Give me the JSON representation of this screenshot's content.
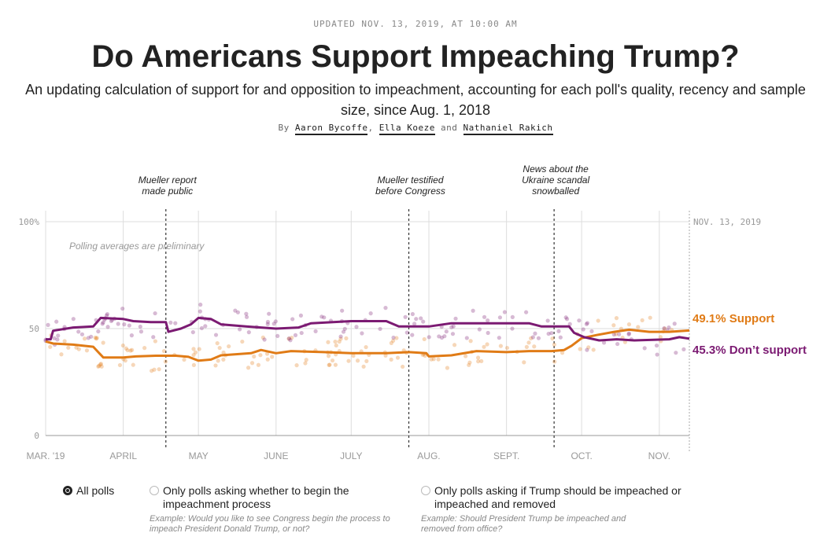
{
  "header": {
    "updated": "UPDATED NOV. 13, 2019, AT 10:00 AM",
    "title": "Do Americans Support Impeaching Trump?",
    "subtitle": "An updating calculation of support for and opposition to impeachment, accounting for each poll's quality, recency and sample size, since Aug. 1, 2018",
    "byline_by": "By",
    "authors": [
      "Aaron Bycoffe",
      "Ella Koeze",
      "Nathaniel Rakich"
    ],
    "byline_sep": ",",
    "byline_and": "and"
  },
  "chart_data": {
    "type": "line",
    "x_start": "2019-03-01",
    "x_end": "2019-11-13",
    "ylim": [
      0,
      100
    ],
    "y_ticks": [
      "0",
      "50",
      "100%"
    ],
    "x_ticks": [
      {
        "date": "2019-03-01",
        "label": "MAR. '19"
      },
      {
        "date": "2019-04-01",
        "label": "APRIL"
      },
      {
        "date": "2019-05-01",
        "label": "MAY"
      },
      {
        "date": "2019-06-01",
        "label": "JUNE"
      },
      {
        "date": "2019-07-01",
        "label": "JULY"
      },
      {
        "date": "2019-08-01",
        "label": "AUG."
      },
      {
        "date": "2019-09-01",
        "label": "SEPT."
      },
      {
        "date": "2019-10-01",
        "label": "OCT."
      },
      {
        "date": "2019-11-01",
        "label": "NOV."
      }
    ],
    "end_date_label": "NOV. 13, 2019",
    "note": "Polling averages are preliminary",
    "grid": true,
    "annotations": [
      {
        "date": "2019-04-18",
        "text": [
          "Mueller report",
          "made public"
        ]
      },
      {
        "date": "2019-07-24",
        "text": [
          "Mueller testified",
          "before Congress"
        ]
      },
      {
        "date": "2019-09-20",
        "text": [
          "News about the",
          "Ukraine scandal",
          "snowballed"
        ]
      }
    ],
    "series": [
      {
        "name": "Support",
        "color": "#e07b16",
        "end_label": "49.1% Support",
        "points": [
          [
            "2019-03-01",
            44
          ],
          [
            "2019-03-04",
            43
          ],
          [
            "2019-03-12",
            42.5
          ],
          [
            "2019-03-16",
            42
          ],
          [
            "2019-03-20",
            41.5
          ],
          [
            "2019-03-24",
            36.5
          ],
          [
            "2019-04-01",
            36.5
          ],
          [
            "2019-04-06",
            37
          ],
          [
            "2019-04-14",
            37.3
          ],
          [
            "2019-04-18",
            37.3
          ],
          [
            "2019-04-22",
            37.3
          ],
          [
            "2019-04-27",
            36.8
          ],
          [
            "2019-05-01",
            35
          ],
          [
            "2019-05-06",
            35.5
          ],
          [
            "2019-05-10",
            37.5
          ],
          [
            "2019-05-22",
            38.5
          ],
          [
            "2019-05-26",
            40
          ],
          [
            "2019-06-01",
            38.5
          ],
          [
            "2019-06-07",
            39.5
          ],
          [
            "2019-06-20",
            39
          ],
          [
            "2019-07-01",
            38.5
          ],
          [
            "2019-07-15",
            38.5
          ],
          [
            "2019-07-24",
            39
          ],
          [
            "2019-07-31",
            38.5
          ],
          [
            "2019-08-01",
            37
          ],
          [
            "2019-08-10",
            37.5
          ],
          [
            "2019-08-20",
            39.5
          ],
          [
            "2019-09-01",
            39
          ],
          [
            "2019-09-10",
            39.5
          ],
          [
            "2019-09-19",
            39.5
          ],
          [
            "2019-09-24",
            40
          ],
          [
            "2019-09-27",
            42
          ],
          [
            "2019-10-01",
            45.5
          ],
          [
            "2019-10-07",
            47
          ],
          [
            "2019-10-14",
            48.5
          ],
          [
            "2019-10-20",
            49.5
          ],
          [
            "2019-10-28",
            48.5
          ],
          [
            "2019-11-05",
            48.5
          ],
          [
            "2019-11-13",
            49.1
          ]
        ]
      },
      {
        "name": "Don't support",
        "color": "#7b1a72",
        "end_label": "45.3% Don’t support",
        "points": [
          [
            "2019-03-01",
            45
          ],
          [
            "2019-03-03",
            45
          ],
          [
            "2019-03-04",
            49
          ],
          [
            "2019-03-12",
            50.5
          ],
          [
            "2019-03-20",
            51
          ],
          [
            "2019-03-23",
            55
          ],
          [
            "2019-04-01",
            54.5
          ],
          [
            "2019-04-05",
            53.5
          ],
          [
            "2019-04-12",
            53
          ],
          [
            "2019-04-18",
            53
          ],
          [
            "2019-04-19",
            48.5
          ],
          [
            "2019-04-24",
            50
          ],
          [
            "2019-04-28",
            52
          ],
          [
            "2019-05-01",
            55
          ],
          [
            "2019-05-06",
            54.5
          ],
          [
            "2019-05-10",
            52
          ],
          [
            "2019-05-20",
            51
          ],
          [
            "2019-06-01",
            50
          ],
          [
            "2019-06-10",
            50.5
          ],
          [
            "2019-06-15",
            52.5
          ],
          [
            "2019-07-01",
            53.5
          ],
          [
            "2019-07-15",
            53.5
          ],
          [
            "2019-07-20",
            51
          ],
          [
            "2019-08-01",
            51
          ],
          [
            "2019-08-10",
            52.5
          ],
          [
            "2019-09-01",
            52.5
          ],
          [
            "2019-09-10",
            52.5
          ],
          [
            "2019-09-15",
            51
          ],
          [
            "2019-09-26",
            51
          ],
          [
            "2019-09-28",
            48
          ],
          [
            "2019-10-02",
            46
          ],
          [
            "2019-10-08",
            44.5
          ],
          [
            "2019-10-15",
            45
          ],
          [
            "2019-10-22",
            44.5
          ],
          [
            "2019-11-05",
            45
          ],
          [
            "2019-11-09",
            46
          ],
          [
            "2019-11-13",
            45.3
          ]
        ]
      }
    ]
  },
  "options": [
    {
      "label": "All polls",
      "selected": true,
      "example": ""
    },
    {
      "label": "Only polls asking whether to begin the impeachment process",
      "selected": false,
      "example": "Example: Would you like to see Congress begin the process to impeach President Donald Trump, or not?"
    },
    {
      "label": "Only polls asking if Trump should be impeached or impeached and removed",
      "selected": false,
      "example": "Example: Should President Trump be impeached and removed from office?"
    }
  ]
}
